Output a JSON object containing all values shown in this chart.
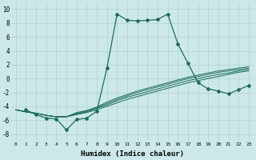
{
  "xlabel": "Humidex (Indice chaleur)",
  "background_color": "#cde8e8",
  "grid_color": "#b0d0d0",
  "line_color": "#1a6e5a",
  "xlim": [
    -0.5,
    23.5
  ],
  "ylim": [
    -9,
    11
  ],
  "xticks": [
    0,
    1,
    2,
    3,
    4,
    5,
    6,
    7,
    8,
    9,
    10,
    11,
    12,
    13,
    14,
    15,
    16,
    17,
    18,
    19,
    20,
    21,
    22,
    23
  ],
  "yticks": [
    -8,
    -6,
    -4,
    -2,
    0,
    2,
    4,
    6,
    8,
    10
  ],
  "main_series": [
    null,
    -4.5,
    -5.2,
    -5.7,
    -5.8,
    -7.4,
    -5.9,
    -5.7,
    -4.7,
    1.5,
    9.3,
    8.4,
    8.3,
    8.4,
    8.5,
    9.3,
    5.0,
    2.2,
    -0.6,
    -1.5,
    -1.8,
    -2.2,
    -1.6,
    -1.0
  ],
  "reg_lines": [
    [
      -4.5,
      -4.8,
      -5.0,
      -5.3,
      -5.5,
      -5.5,
      -5.2,
      -4.9,
      -4.5,
      -4.0,
      -3.5,
      -3.0,
      -2.6,
      -2.2,
      -1.8,
      -1.4,
      -1.0,
      -0.6,
      -0.3,
      0.0,
      0.3,
      0.6,
      0.9,
      1.1
    ],
    [
      -4.5,
      -4.8,
      -5.0,
      -5.3,
      -5.5,
      -5.5,
      -5.1,
      -4.8,
      -4.3,
      -3.8,
      -3.2,
      -2.7,
      -2.3,
      -1.9,
      -1.5,
      -1.1,
      -0.7,
      -0.3,
      0.0,
      0.3,
      0.6,
      0.8,
      1.1,
      1.3
    ],
    [
      -4.5,
      -4.8,
      -5.0,
      -5.3,
      -5.5,
      -5.5,
      -5.0,
      -4.7,
      -4.2,
      -3.6,
      -3.0,
      -2.5,
      -2.0,
      -1.6,
      -1.2,
      -0.8,
      -0.4,
      0.0,
      0.3,
      0.6,
      0.9,
      1.1,
      1.3,
      1.5
    ],
    [
      -4.5,
      -4.8,
      -5.0,
      -5.3,
      -5.5,
      -5.5,
      -4.9,
      -4.6,
      -4.1,
      -3.4,
      -2.8,
      -2.3,
      -1.8,
      -1.4,
      -1.0,
      -0.6,
      -0.2,
      0.2,
      0.5,
      0.8,
      1.1,
      1.3,
      1.5,
      1.7
    ]
  ]
}
